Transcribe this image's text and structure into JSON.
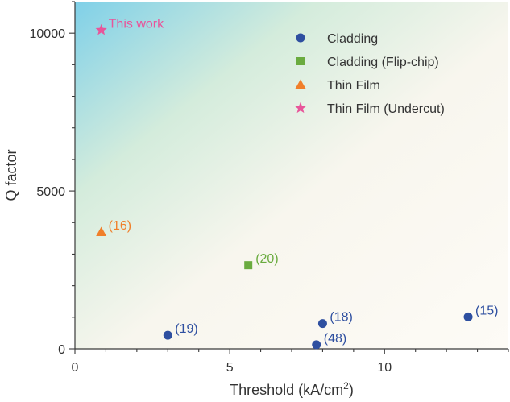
{
  "chart_data": {
    "type": "scatter",
    "xlabel": "Threshold (kA/cm",
    "xlabel_sup": "2",
    "xlabel_close": ")",
    "ylabel": "Q factor",
    "xlim": [
      0,
      14
    ],
    "ylim": [
      0,
      11000
    ],
    "x_ticks": [
      0,
      5,
      10
    ],
    "y_ticks": [
      0,
      5000,
      10000
    ],
    "x_minor_step": 1,
    "y_minor_step": 1000,
    "grid": false,
    "legend_position": "top-right",
    "colors": {
      "cladding": "#2e4fa0",
      "flip_chip": "#6aab3f",
      "thin_film": "#f07f2a",
      "undercut": "#e8559a",
      "background_corner": "#7fd0e8"
    },
    "series": [
      {
        "name": "Cladding",
        "marker": "circle",
        "color": "#2e4fa0",
        "points": [
          {
            "x": 3.0,
            "y": 430,
            "label": "(19)"
          },
          {
            "x": 7.8,
            "y": 130,
            "label": "(48)"
          },
          {
            "x": 8.0,
            "y": 800,
            "label": "(18)"
          },
          {
            "x": 12.7,
            "y": 1010,
            "label": "(15)"
          }
        ]
      },
      {
        "name": "Cladding (Flip-chip)",
        "marker": "square",
        "color": "#6aab3f",
        "points": [
          {
            "x": 5.6,
            "y": 2650,
            "label": "(20)"
          }
        ]
      },
      {
        "name": "Thin Film",
        "marker": "triangle",
        "color": "#f07f2a",
        "points": [
          {
            "x": 0.85,
            "y": 3700,
            "label": "(16)"
          }
        ]
      },
      {
        "name": "Thin Film (Undercut)",
        "marker": "star",
        "color": "#e8559a",
        "points": [
          {
            "x": 0.85,
            "y": 10100,
            "label": "This work"
          }
        ]
      }
    ]
  }
}
